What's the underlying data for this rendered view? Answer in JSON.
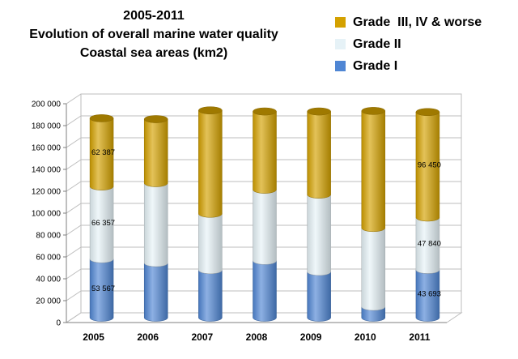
{
  "title": {
    "line1": "2005-2011",
    "line2": "Evolution of overall marine water quality",
    "line3": "Coastal sea areas (km2)"
  },
  "legend": [
    {
      "label": "Grade  III, IV & worse",
      "color": "#d4a100"
    },
    {
      "label": "Grade II",
      "color": "#e6f2f7"
    },
    {
      "label": "Grade I",
      "color": "#4f86d4"
    }
  ],
  "chart_data": {
    "type": "bar",
    "stacked": true,
    "categories": [
      "2005",
      "2006",
      "2007",
      "2008",
      "2009",
      "2010",
      "2011"
    ],
    "series": [
      {
        "name": "Grade I",
        "color": "#4f86d4",
        "values": [
          53567,
          50000,
          43500,
          52000,
          42000,
          10000,
          43693
        ]
      },
      {
        "name": "Grade II",
        "color": "#e6f2f7",
        "values": [
          66357,
          73000,
          51500,
          65000,
          70500,
          72000,
          47840
        ]
      },
      {
        "name": "Grade  III, IV & worse",
        "color": "#d4a100",
        "values": [
          62387,
          58500,
          94500,
          71500,
          76000,
          107000,
          96450
        ]
      }
    ],
    "data_labels": [
      {
        "category": "2005",
        "series": "Grade I",
        "text": "53 567"
      },
      {
        "category": "2005",
        "series": "Grade II",
        "text": "66 357"
      },
      {
        "category": "2005",
        "series": "Grade  III, IV & worse",
        "text": "62 387"
      },
      {
        "category": "2011",
        "series": "Grade I",
        "text": "43 693"
      },
      {
        "category": "2011",
        "series": "Grade II",
        "text": "47 840"
      },
      {
        "category": "2011",
        "series": "Grade  III, IV & worse",
        "text": "96 450"
      }
    ],
    "yticks": [
      "0",
      "20 000",
      "40 000",
      "60 000",
      "80 000",
      "100 000",
      "120 000",
      "140 000",
      "160 000",
      "180 000",
      "200 000"
    ],
    "ylim": [
      0,
      200000
    ],
    "grid": true,
    "legend_position": "top-right"
  }
}
